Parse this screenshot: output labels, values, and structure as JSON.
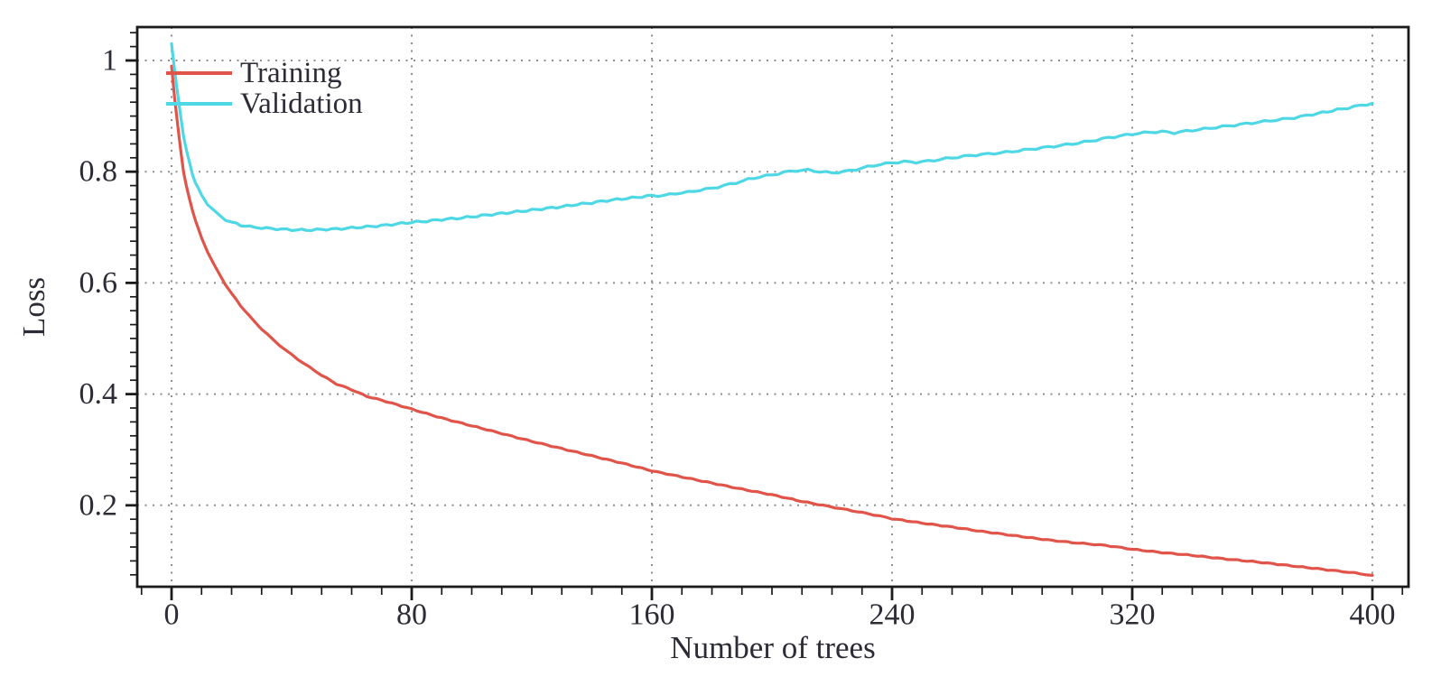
{
  "chart_data": {
    "type": "line",
    "title": "",
    "xlabel": "Number of trees",
    "ylabel": "Loss",
    "xlim": [
      -11.4,
      412
    ],
    "ylim": [
      0.048,
      1.06
    ],
    "x_ticks": [
      0,
      80,
      160,
      240,
      320,
      400
    ],
    "x_tick_labels": [
      "0",
      "80",
      "160",
      "240",
      "320",
      "400"
    ],
    "x_minor_step": 10,
    "y_ticks": [
      1.0,
      0.8,
      0.6,
      0.4,
      0.2
    ],
    "y_tick_labels": [
      "1",
      "0.8",
      "0.6",
      "0.4",
      "0.2"
    ],
    "y_minor_step": 0.025,
    "grid": "dotted lines at major ticks, both axes",
    "legend": {
      "position": "top-left",
      "entries": [
        {
          "label": "Training",
          "color": "#e0544a"
        },
        {
          "label": "Validation",
          "color": "#4ed8e6"
        }
      ]
    },
    "series": [
      {
        "name": "Training",
        "color": "#e0544a",
        "points": [
          [
            0,
            0.99
          ],
          [
            1,
            0.935
          ],
          [
            2,
            0.885
          ],
          [
            3,
            0.84
          ],
          [
            4,
            0.8
          ],
          [
            5,
            0.773
          ],
          [
            6,
            0.75
          ],
          [
            7,
            0.73
          ],
          [
            8,
            0.712
          ],
          [
            9,
            0.696
          ],
          [
            10,
            0.681
          ],
          [
            12,
            0.656
          ],
          [
            14,
            0.634
          ],
          [
            16,
            0.615
          ],
          [
            18,
            0.597
          ],
          [
            20,
            0.581
          ],
          [
            23,
            0.559
          ],
          [
            26,
            0.54
          ],
          [
            30,
            0.517
          ],
          [
            34,
            0.497
          ],
          [
            38,
            0.479
          ],
          [
            42,
            0.463
          ],
          [
            46,
            0.448
          ],
          [
            50,
            0.434
          ],
          [
            55,
            0.418
          ],
          [
            60,
            0.408
          ],
          [
            65,
            0.396
          ],
          [
            70,
            0.389
          ],
          [
            75,
            0.381
          ],
          [
            80,
            0.373
          ],
          [
            85,
            0.365
          ],
          [
            90,
            0.357
          ],
          [
            95,
            0.35
          ],
          [
            100,
            0.343
          ],
          [
            110,
            0.329
          ],
          [
            120,
            0.315
          ],
          [
            130,
            0.302
          ],
          [
            140,
            0.289
          ],
          [
            150,
            0.276
          ],
          [
            160,
            0.262
          ],
          [
            170,
            0.251
          ],
          [
            180,
            0.24
          ],
          [
            190,
            0.229
          ],
          [
            200,
            0.219
          ],
          [
            210,
            0.207
          ],
          [
            217,
            0.2
          ],
          [
            225,
            0.192
          ],
          [
            232,
            0.185
          ],
          [
            240,
            0.176
          ],
          [
            250,
            0.168
          ],
          [
            260,
            0.161
          ],
          [
            270,
            0.153
          ],
          [
            280,
            0.146
          ],
          [
            290,
            0.139
          ],
          [
            300,
            0.133
          ],
          [
            311,
            0.128
          ],
          [
            320,
            0.121
          ],
          [
            330,
            0.115
          ],
          [
            340,
            0.11
          ],
          [
            350,
            0.104
          ],
          [
            360,
            0.099
          ],
          [
            370,
            0.093
          ],
          [
            380,
            0.087
          ],
          [
            390,
            0.081
          ],
          [
            396,
            0.077
          ],
          [
            400,
            0.074
          ]
        ]
      },
      {
        "name": "Validation",
        "color": "#4ed8e6",
        "points": [
          [
            0,
            1.03
          ],
          [
            1,
            0.985
          ],
          [
            2,
            0.94
          ],
          [
            3,
            0.9
          ],
          [
            4,
            0.865
          ],
          [
            5,
            0.838
          ],
          [
            6,
            0.815
          ],
          [
            7,
            0.795
          ],
          [
            8,
            0.78
          ],
          [
            9,
            0.768
          ],
          [
            10,
            0.758
          ],
          [
            12,
            0.742
          ],
          [
            14,
            0.73
          ],
          [
            16,
            0.721
          ],
          [
            18,
            0.714
          ],
          [
            20,
            0.709
          ],
          [
            23,
            0.704
          ],
          [
            26,
            0.701
          ],
          [
            30,
            0.699
          ],
          [
            35,
            0.697
          ],
          [
            40,
            0.6955
          ],
          [
            45,
            0.695
          ],
          [
            50,
            0.696
          ],
          [
            55,
            0.697
          ],
          [
            60,
            0.699
          ],
          [
            65,
            0.701
          ],
          [
            70,
            0.703
          ],
          [
            75,
            0.706
          ],
          [
            80,
            0.709
          ],
          [
            85,
            0.711
          ],
          [
            90,
            0.714
          ],
          [
            95,
            0.716
          ],
          [
            100,
            0.719
          ],
          [
            105,
            0.722
          ],
          [
            110,
            0.725
          ],
          [
            115,
            0.728
          ],
          [
            120,
            0.731
          ],
          [
            125,
            0.734
          ],
          [
            130,
            0.737
          ],
          [
            135,
            0.741
          ],
          [
            140,
            0.744
          ],
          [
            145,
            0.748
          ],
          [
            150,
            0.751
          ],
          [
            155,
            0.754
          ],
          [
            160,
            0.757
          ],
          [
            164,
            0.757
          ],
          [
            168,
            0.761
          ],
          [
            172,
            0.763
          ],
          [
            176,
            0.767
          ],
          [
            180,
            0.77
          ],
          [
            184,
            0.775
          ],
          [
            188,
            0.78
          ],
          [
            192,
            0.786
          ],
          [
            196,
            0.791
          ],
          [
            200,
            0.794
          ],
          [
            204,
            0.799
          ],
          [
            208,
            0.802
          ],
          [
            212,
            0.803
          ],
          [
            216,
            0.8
          ],
          [
            220,
            0.798
          ],
          [
            224,
            0.8
          ],
          [
            228,
            0.804
          ],
          [
            232,
            0.809
          ],
          [
            236,
            0.813
          ],
          [
            240,
            0.816
          ],
          [
            244,
            0.818
          ],
          [
            248,
            0.817
          ],
          [
            252,
            0.819
          ],
          [
            256,
            0.822
          ],
          [
            260,
            0.825
          ],
          [
            266,
            0.829
          ],
          [
            272,
            0.832
          ],
          [
            278,
            0.835
          ],
          [
            284,
            0.839
          ],
          [
            290,
            0.843
          ],
          [
            296,
            0.847
          ],
          [
            300,
            0.85
          ],
          [
            306,
            0.855
          ],
          [
            312,
            0.861
          ],
          [
            318,
            0.866
          ],
          [
            322,
            0.869
          ],
          [
            326,
            0.871
          ],
          [
            330,
            0.872
          ],
          [
            334,
            0.87
          ],
          [
            338,
            0.873
          ],
          [
            344,
            0.877
          ],
          [
            350,
            0.881
          ],
          [
            356,
            0.885
          ],
          [
            362,
            0.889
          ],
          [
            368,
            0.893
          ],
          [
            374,
            0.897
          ],
          [
            380,
            0.903
          ],
          [
            385,
            0.908
          ],
          [
            390,
            0.913
          ],
          [
            394,
            0.917
          ],
          [
            398,
            0.921
          ],
          [
            400,
            0.923
          ]
        ]
      }
    ],
    "colors": {
      "axis_box": "#1b1b1b",
      "grid": "#8f8f8f",
      "text": "#2c2c36",
      "background": "#ffffff"
    }
  }
}
